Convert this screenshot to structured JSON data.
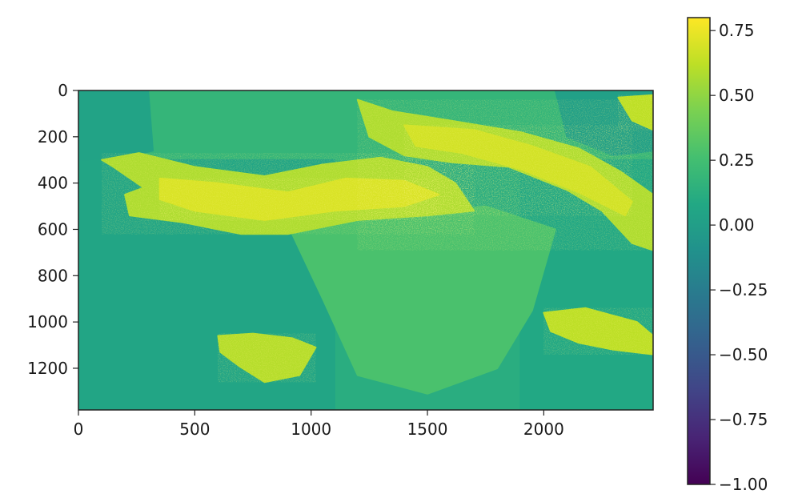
{
  "chart_data": {
    "type": "heatmap",
    "title": "",
    "xlabel": "",
    "ylabel": "",
    "image_width": 2470,
    "image_height": 1380,
    "xlim": [
      0,
      2470
    ],
    "ylim": [
      1380,
      0
    ],
    "y_axis_inverted": true,
    "x_ticks": [
      0,
      500,
      1000,
      1500,
      2000
    ],
    "x_tick_labels": [
      "0",
      "500",
      "1000",
      "1500",
      "2000"
    ],
    "y_ticks": [
      0,
      200,
      400,
      600,
      800,
      1000,
      1200
    ],
    "y_tick_labels": [
      "0",
      "200",
      "400",
      "600",
      "800",
      "1000",
      "1200"
    ],
    "grid": false,
    "colormap": "viridis",
    "colorbar": {
      "vmin": -1.0,
      "vmax": 0.8,
      "ticks": [
        -1.0,
        -0.75,
        -0.5,
        -0.25,
        0.0,
        0.25,
        0.5,
        0.75
      ],
      "tick_labels": [
        "−1.00",
        "−0.75",
        "−0.50",
        "−0.25",
        "0.00",
        "0.25",
        "0.50",
        "0.75"
      ],
      "placement": "right"
    },
    "regions": [
      {
        "name": "background-upper",
        "polygon": [
          [
            0,
            0
          ],
          [
            2470,
            0
          ],
          [
            2470,
            300
          ],
          [
            0,
            300
          ]
        ],
        "value": 0.18
      },
      {
        "name": "background-left-dark",
        "polygon": [
          [
            0,
            300
          ],
          [
            1100,
            300
          ],
          [
            1100,
            1380
          ],
          [
            0,
            1380
          ]
        ],
        "value": 0.06
      },
      {
        "name": "background-right-dark",
        "polygon": [
          [
            1900,
            300
          ],
          [
            2470,
            300
          ],
          [
            2470,
            1380
          ],
          [
            1900,
            1380
          ]
        ],
        "value": 0.08
      },
      {
        "name": "left-top-dark",
        "polygon": [
          [
            0,
            0
          ],
          [
            300,
            0
          ],
          [
            320,
            260
          ],
          [
            200,
            290
          ],
          [
            0,
            300
          ]
        ],
        "value": 0.04
      },
      {
        "name": "right-top-dark",
        "polygon": [
          [
            2050,
            0
          ],
          [
            2470,
            0
          ],
          [
            2470,
            260
          ],
          [
            2300,
            280
          ],
          [
            2100,
            200
          ]
        ],
        "value": 0.02
      },
      {
        "name": "central-lighter",
        "polygon": [
          [
            900,
            580
          ],
          [
            1250,
            560
          ],
          [
            1750,
            500
          ],
          [
            2050,
            600
          ],
          [
            1950,
            950
          ],
          [
            1800,
            1200
          ],
          [
            1500,
            1310
          ],
          [
            1200,
            1230
          ],
          [
            1050,
            900
          ]
        ],
        "value": 0.28
      },
      {
        "name": "ridge-west",
        "polygon": [
          [
            100,
            300
          ],
          [
            260,
            270
          ],
          [
            500,
            330
          ],
          [
            800,
            370
          ],
          [
            1050,
            320
          ],
          [
            1300,
            290
          ],
          [
            1500,
            330
          ],
          [
            1620,
            400
          ],
          [
            1700,
            520
          ],
          [
            1500,
            540
          ],
          [
            1200,
            560
          ],
          [
            900,
            620
          ],
          [
            700,
            620
          ],
          [
            450,
            570
          ],
          [
            220,
            540
          ],
          [
            200,
            450
          ],
          [
            280,
            420
          ],
          [
            150,
            330
          ]
        ],
        "value": 0.58
      },
      {
        "name": "ridge-west-core",
        "polygon": [
          [
            350,
            380
          ],
          [
            600,
            400
          ],
          [
            900,
            440
          ],
          [
            1150,
            380
          ],
          [
            1400,
            390
          ],
          [
            1550,
            450
          ],
          [
            1400,
            500
          ],
          [
            1100,
            520
          ],
          [
            800,
            560
          ],
          [
            500,
            520
          ],
          [
            350,
            470
          ]
        ],
        "value": 0.7
      },
      {
        "name": "ridge-northeast",
        "polygon": [
          [
            1200,
            40
          ],
          [
            1350,
            90
          ],
          [
            1600,
            130
          ],
          [
            1900,
            180
          ],
          [
            2150,
            250
          ],
          [
            2330,
            350
          ],
          [
            2470,
            450
          ],
          [
            2470,
            690
          ],
          [
            2380,
            660
          ],
          [
            2250,
            520
          ],
          [
            2100,
            430
          ],
          [
            1850,
            330
          ],
          [
            1600,
            310
          ],
          [
            1400,
            280
          ],
          [
            1250,
            200
          ]
        ],
        "value": 0.58
      },
      {
        "name": "ridge-northeast-core",
        "polygon": [
          [
            1400,
            150
          ],
          [
            1700,
            170
          ],
          [
            1950,
            240
          ],
          [
            2200,
            330
          ],
          [
            2380,
            480
          ],
          [
            2350,
            540
          ],
          [
            2150,
            440
          ],
          [
            1900,
            340
          ],
          [
            1650,
            270
          ],
          [
            1450,
            240
          ]
        ],
        "value": 0.68
      },
      {
        "name": "patch-southwest",
        "polygon": [
          [
            600,
            1060
          ],
          [
            750,
            1050
          ],
          [
            920,
            1070
          ],
          [
            1020,
            1110
          ],
          [
            950,
            1230
          ],
          [
            800,
            1260
          ],
          [
            690,
            1190
          ],
          [
            610,
            1130
          ]
        ],
        "value": 0.6
      },
      {
        "name": "patch-east",
        "polygon": [
          [
            2000,
            960
          ],
          [
            2180,
            940
          ],
          [
            2400,
            1000
          ],
          [
            2470,
            1060
          ],
          [
            2470,
            1140
          ],
          [
            2300,
            1120
          ],
          [
            2150,
            1090
          ],
          [
            2030,
            1040
          ]
        ],
        "value": 0.62
      },
      {
        "name": "patch-top-right",
        "polygon": [
          [
            2320,
            30
          ],
          [
            2470,
            20
          ],
          [
            2470,
            170
          ],
          [
            2380,
            130
          ]
        ],
        "value": 0.62
      }
    ]
  }
}
